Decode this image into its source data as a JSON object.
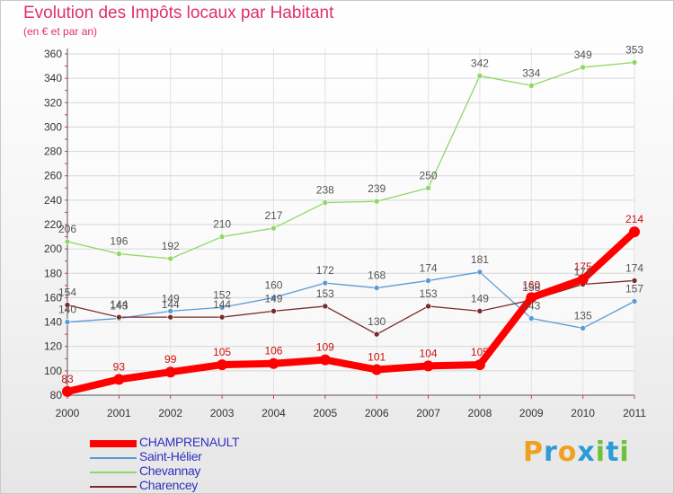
{
  "title": "Evolution des Impôts locaux par Habitant",
  "subtitle": "(en € et par an)",
  "brand": {
    "letters": [
      "P",
      "r",
      "o",
      "x",
      "i",
      "t",
      "i"
    ],
    "colors": [
      "#f0a020",
      "#2e9ad8",
      "#f0a020",
      "#2e9ad8",
      "#6cc23a",
      "#2e9ad8",
      "#6cc23a"
    ]
  },
  "chart_data": {
    "type": "line",
    "x": [
      2000,
      2001,
      2002,
      2003,
      2004,
      2005,
      2006,
      2007,
      2008,
      2009,
      2010,
      2011
    ],
    "ylim": [
      80,
      360
    ],
    "yticks": [
      80,
      100,
      120,
      140,
      160,
      180,
      200,
      220,
      240,
      260,
      280,
      300,
      320,
      340,
      360
    ],
    "grid": true,
    "legend_position": "bottom-left",
    "series": [
      {
        "name": "CHAMPRENAULT",
        "color": "#ff0000",
        "values": [
          83,
          93,
          99,
          105,
          106,
          109,
          101,
          104,
          105,
          160,
          175,
          214
        ]
      },
      {
        "name": "Saint-Hélier",
        "color": "#5b9bd5",
        "values": [
          140,
          143,
          149,
          152,
          160,
          172,
          168,
          174,
          181,
          143,
          135,
          157
        ]
      },
      {
        "name": "Chevannay",
        "color": "#8fd865",
        "values": [
          206,
          196,
          192,
          210,
          217,
          238,
          239,
          250,
          342,
          334,
          349,
          353
        ]
      },
      {
        "name": "Charencey",
        "color": "#7a2a2a",
        "values": [
          154,
          144,
          144,
          144,
          149,
          153,
          130,
          153,
          149,
          158,
          171,
          174
        ]
      }
    ]
  }
}
